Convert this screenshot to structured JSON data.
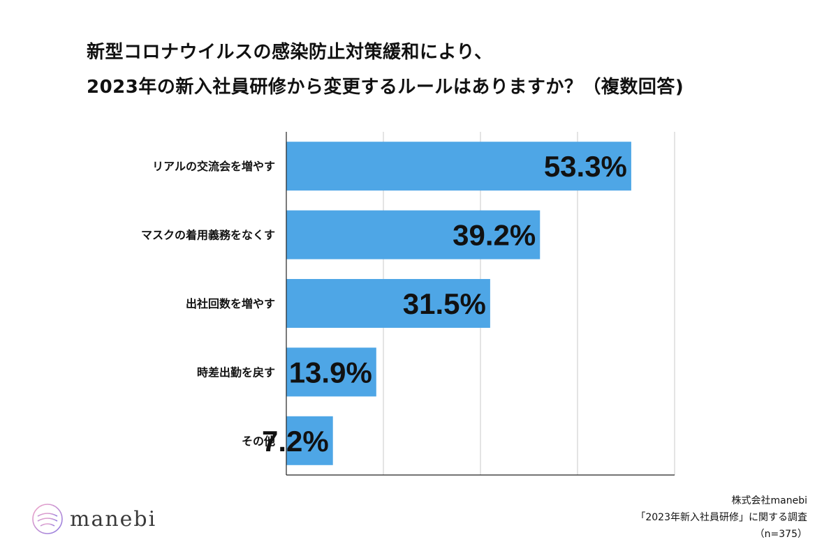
{
  "title_lines": [
    "新型コロナウイルスの感染防止対策緩和により、",
    "2023年の新入社員研修から変更するルールはありますか？（複数回答)"
  ],
  "chart_data": {
    "type": "bar",
    "orientation": "horizontal",
    "categories": [
      "リアルの交流会を増やす",
      "マスクの着用義務をなくす",
      "出社回数を増やす",
      "時差出勤を戻す",
      "その他"
    ],
    "values": [
      53.3,
      39.2,
      31.5,
      13.9,
      7.2
    ],
    "value_labels": [
      "53.3%",
      "39.2%",
      "31.5%",
      "13.9%",
      "7.2%"
    ],
    "xlim": [
      0,
      60
    ],
    "grid": true,
    "bar_color": "#4ea6e6"
  },
  "logo": {
    "icon": "manebi-book-logo",
    "text": "manebi"
  },
  "credit_lines": [
    "株式会社manebi",
    "「2023年新入社員研修」に関する調査",
    "（n=375）"
  ]
}
